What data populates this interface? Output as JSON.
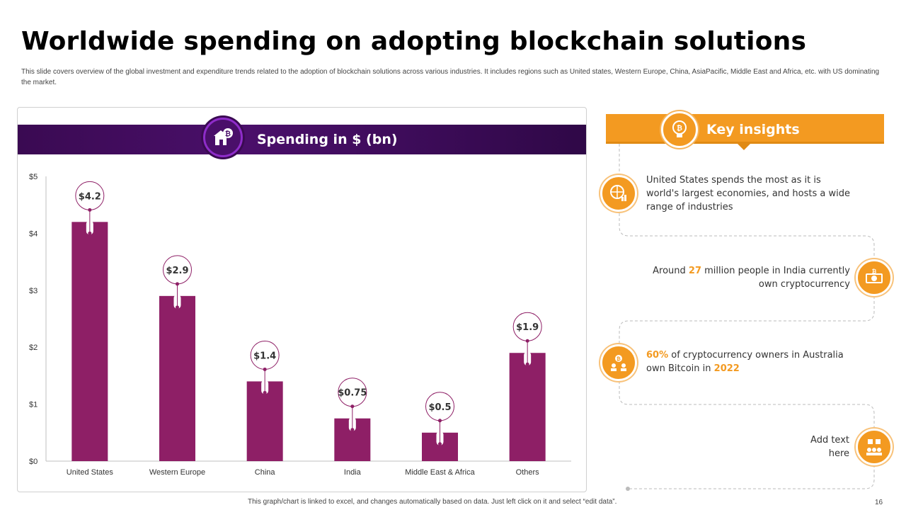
{
  "slide": {
    "title": "Worldwide spending on adopting blockchain solutions",
    "subtitle": "This slide covers overview of the global investment and expenditure trends related to the adoption of blockchain solutions across various industries. It includes regions such as United states, Western Europe, China, AsiaPacific, Middle East and Africa, etc. with US dominating the market.",
    "footnote": "This graph/chart is linked to excel, and changes automatically based on data. Just left click on it and select “edit data”.",
    "page_number": "16"
  },
  "chart_data": {
    "type": "bar",
    "title": "Spending in $ (bn)",
    "categories": [
      "United States",
      "Western Europe",
      "China",
      "India",
      "Middle East & Africa",
      "Others"
    ],
    "values": [
      4.2,
      2.9,
      1.4,
      0.75,
      0.5,
      1.9
    ],
    "data_labels": [
      "$4.2",
      "$2.9",
      "$1.4",
      "$0.75",
      "$0.5",
      "$1.9"
    ],
    "yticks": [
      "$0",
      "$1",
      "$2",
      "$3",
      "$4",
      "$5"
    ],
    "ylim": [
      0,
      5
    ],
    "xlabel": "",
    "ylabel": "",
    "grid": false,
    "bar_color": "#8e1f66",
    "badge_icon": "bitcoin-shop-icon"
  },
  "insights": {
    "title": "Key insights",
    "header_icon": "bulb-bitcoin-icon",
    "items": [
      {
        "icon": "globe-chart-icon",
        "text": "United States spends the most as it is world's largest economies, and hosts a wide range of industries"
      },
      {
        "icon": "money-bitcoin-icon",
        "pre": "Around ",
        "highlight": "27",
        "post": " million people in India currently own cryptocurrency"
      },
      {
        "icon": "bitcoin-people-icon",
        "highlight1": "60%",
        "mid": " of cryptocurrency owners in Australia own Bitcoin in ",
        "highlight2": "2022"
      },
      {
        "icon": "team-network-icon",
        "text": "Add text here"
      }
    ]
  },
  "colors": {
    "accent_orange": "#f39a21",
    "accent_purple": "#4a0f6a",
    "bar": "#8e1f66"
  }
}
